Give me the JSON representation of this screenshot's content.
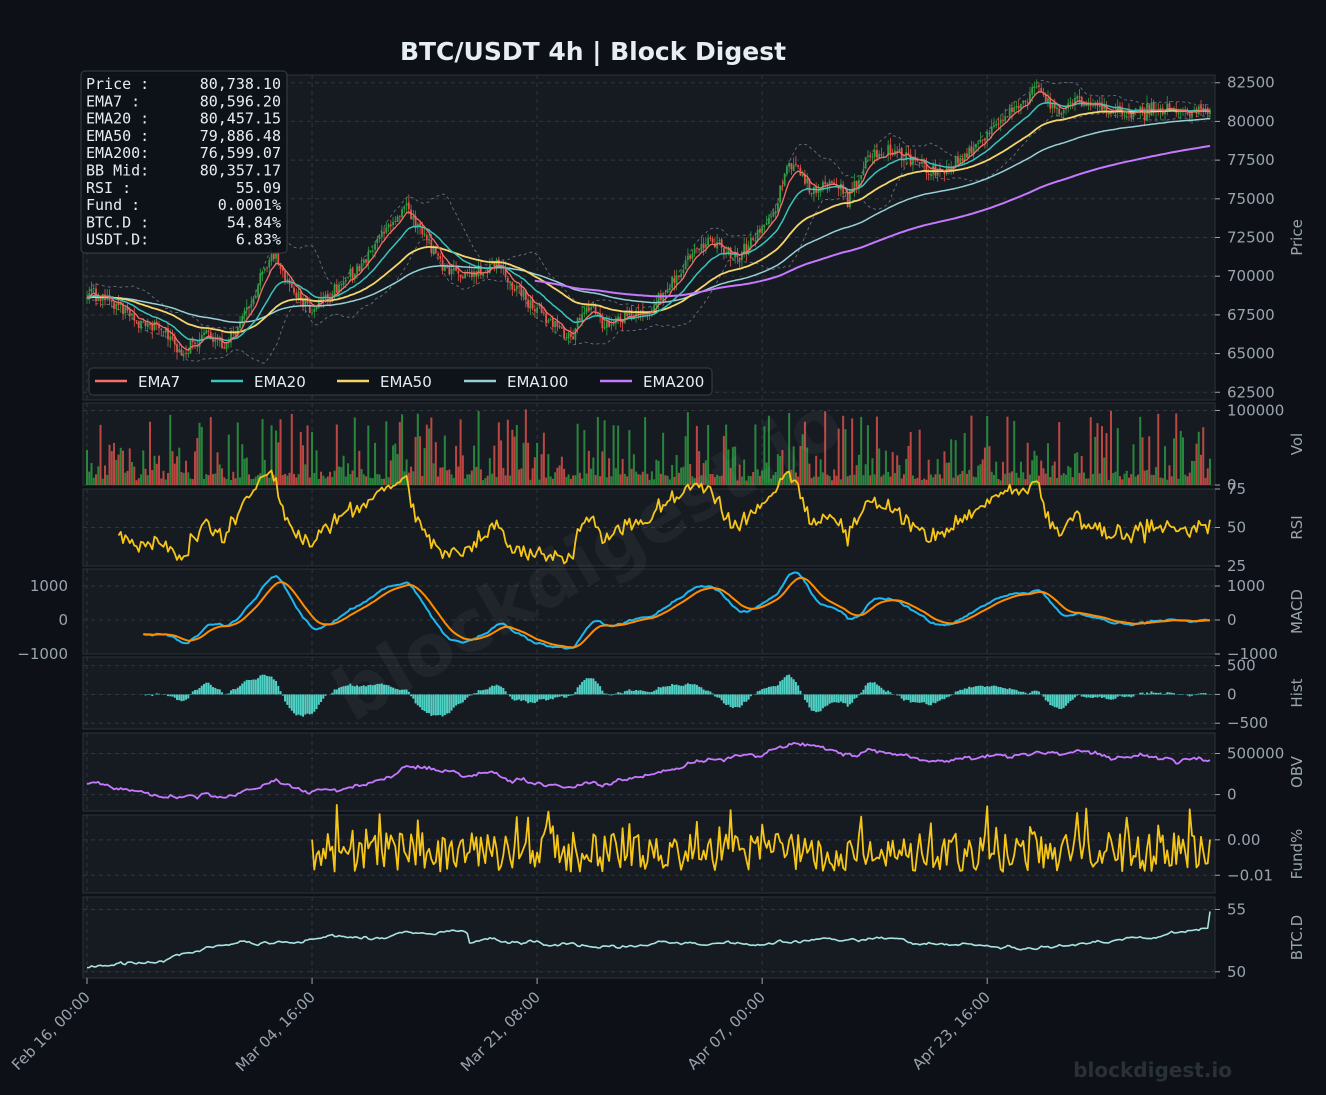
{
  "title": "BTC/USDT  4h  |  Block Digest",
  "watermark": "blockdigest.io",
  "footer_brand": "blockdigest.io",
  "colors": {
    "background": "#0d1117",
    "panel": "#161b22",
    "grid": "#30363d",
    "up": "#2ea043",
    "down": "#e5534b",
    "ema7": "#f47067",
    "ema20": "#39c5bb",
    "ema50": "#f5d66b",
    "ema100": "#96d0d6",
    "ema200": "#c678ff",
    "rsi": "#f5c518",
    "macd": "#1fb6f0",
    "signal": "#ff8c00",
    "hist": "#4fd1c5",
    "obv": "#c678ff",
    "funding": "#f5c518",
    "btcd": "#a7e3e0"
  },
  "info_box": [
    {
      "label": "Price :",
      "value": "80,738.10"
    },
    {
      "label": "EMA7  :",
      "value": "80,596.20"
    },
    {
      "label": "EMA20 :",
      "value": "80,457.15"
    },
    {
      "label": "EMA50 :",
      "value": "79,886.48"
    },
    {
      "label": "EMA200:",
      "value": "76,599.07"
    },
    {
      "label": "BB Mid:",
      "value": "80,357.17"
    },
    {
      "label": "RSI   :",
      "value": "55.09"
    },
    {
      "label": "Fund  :",
      "value": "0.0001%"
    },
    {
      "label": "BTC.D :",
      "value": "54.84%"
    },
    {
      "label": "USDT.D:",
      "value": "6.83%"
    }
  ],
  "chart_data": {
    "type": "line",
    "x_ticks": [
      "Feb 16, 00:00",
      "Mar 04, 16:00",
      "Mar 21, 08:00",
      "Apr 07, 00:00",
      "Apr 23, 16:00"
    ],
    "legend": [
      "EMA7",
      "EMA20",
      "EMA50",
      "EMA100",
      "EMA200"
    ],
    "legend_position": "lower-left",
    "grid": true,
    "price_anchors": {
      "x": [
        0,
        10,
        22,
        32,
        42,
        52,
        62,
        72,
        82,
        92,
        100,
        112,
        122,
        132,
        142,
        150,
        160,
        170,
        182,
        194,
        205,
        215,
        222,
        230,
        240,
        250,
        262,
        270,
        278,
        288,
        296,
        305,
        312,
        322,
        330,
        338,
        346,
        356,
        366,
        372,
        380,
        392,
        402,
        412,
        422,
        432,
        440,
        450,
        460,
        470,
        480,
        490,
        500
      ],
      "close": [
        69000,
        68500,
        67200,
        66800,
        65000,
        66300,
        65600,
        68000,
        71600,
        69000,
        67800,
        69500,
        70700,
        73000,
        74300,
        72600,
        70400,
        70000,
        70800,
        68800,
        67200,
        66000,
        68300,
        66800,
        67500,
        67600,
        70000,
        71600,
        72400,
        71000,
        72500,
        74000,
        77400,
        75600,
        76200,
        75000,
        77500,
        78100,
        77600,
        77000,
        76800,
        78000,
        79500,
        80800,
        82100,
        80600,
        81400,
        80800,
        80700,
        80600,
        80700,
        80700,
        80738
      ]
    },
    "price": {
      "ylabel": "Price",
      "ylim": [
        62000,
        83000
      ],
      "ticks": [
        62500,
        65000,
        67500,
        70000,
        72500,
        75000,
        77500,
        80000,
        82500
      ]
    },
    "volume": {
      "ylabel": "Vol",
      "ylim": [
        0,
        110000
      ],
      "ticks": [
        0,
        100000
      ]
    },
    "rsi": {
      "ylabel": "RSI",
      "ylim": [
        25,
        75
      ],
      "ticks": [
        25,
        50,
        75
      ],
      "last": 55.09
    },
    "macd": {
      "ylabel": "MACD",
      "ylim": [
        -1000,
        1500
      ],
      "ticks_left": [
        -1000,
        0,
        1000
      ],
      "ticks_right": [
        -1000,
        0,
        1000
      ]
    },
    "hist": {
      "ylabel": "Hist",
      "ylim": [
        -600,
        650
      ],
      "ticks": [
        -500,
        0,
        500
      ]
    },
    "obv": {
      "ylabel": "OBV",
      "ylim": [
        -200000,
        750000
      ],
      "ticks": [
        0,
        500000
      ]
    },
    "funding": {
      "ylabel": "Fund%",
      "ylim": [
        -0.015,
        0.007
      ],
      "ticks": [
        0.0,
        -0.01
      ],
      "tick_labels": [
        "0.00",
        "−0.01"
      ],
      "last": 0.0001
    },
    "btcd": {
      "ylabel": "BTC.D",
      "ylim": [
        49.5,
        56
      ],
      "ticks": [
        50,
        55
      ],
      "last": 54.84
    }
  }
}
